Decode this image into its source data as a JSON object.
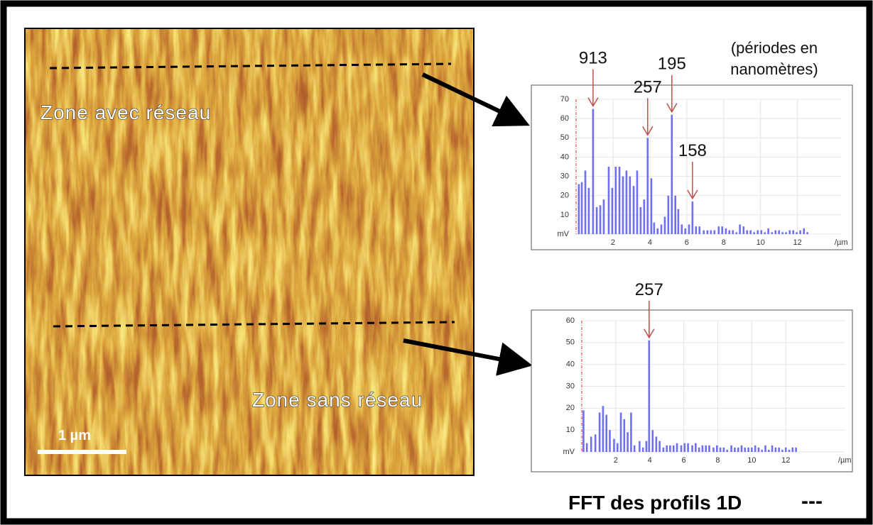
{
  "image": {
    "labels": [
      "Zone avec réseau",
      "Zone sans réseau"
    ],
    "scale_bar": "1 µm"
  },
  "caption": "FFT des profils 1D",
  "caption_marker": "---",
  "chart_data": [
    {
      "type": "bar",
      "color": "#6f6ff0",
      "grid": true,
      "xlabel": "/µm",
      "note": [
        "(périodes en",
        "nanomètres)"
      ],
      "xlim": [
        0,
        14.4
      ],
      "xticks": [
        2,
        4,
        6,
        8,
        10,
        12
      ],
      "ylim": [
        0,
        70
      ],
      "yticks": [
        {
          "value": 0,
          "label": "mV"
        },
        10,
        20,
        30,
        40,
        50,
        60,
        70
      ],
      "x": [
        0.15,
        0.31,
        0.5,
        0.69,
        0.92,
        1.12,
        1.31,
        1.5,
        1.77,
        1.96,
        2.15,
        2.35,
        2.54,
        2.73,
        2.92,
        3.12,
        3.31,
        3.5,
        3.69,
        3.88,
        4.08,
        4.23,
        4.42,
        4.62,
        4.81,
        5.0,
        5.19,
        5.38,
        5.54,
        5.73,
        5.92,
        6.12,
        6.31,
        6.5,
        6.69,
        6.92,
        7.12,
        7.31,
        7.5,
        7.73,
        7.92,
        8.12,
        8.31,
        8.5,
        8.69,
        8.88,
        9.08,
        9.27,
        9.46,
        9.65,
        9.85,
        10.04,
        10.23,
        10.42,
        10.62,
        10.81,
        11.0,
        11.19,
        11.38,
        11.58,
        11.77,
        11.96,
        12.15,
        12.35,
        12.54
      ],
      "values": [
        26,
        27,
        33,
        24,
        65,
        14,
        15,
        18,
        35,
        24,
        35,
        35,
        30,
        33,
        30,
        25,
        33,
        14,
        18,
        50,
        29,
        6,
        3,
        5,
        9,
        20,
        62,
        20,
        13,
        5,
        3,
        5,
        17,
        4,
        4,
        2,
        2,
        2,
        2,
        4,
        4,
        3,
        2,
        2,
        1,
        5,
        4,
        2,
        2,
        1,
        2,
        2,
        1,
        3,
        1,
        2,
        2,
        1,
        1,
        2,
        2,
        1,
        2,
        3,
        1
      ],
      "annotations": [
        {
          "text": "913",
          "x": 0.92,
          "y": 65
        },
        {
          "text": "257",
          "x": 3.88,
          "y": 50
        },
        {
          "text": "195",
          "x": 5.19,
          "y": 62
        },
        {
          "text": "158",
          "x": 6.31,
          "y": 17
        }
      ]
    },
    {
      "type": "bar",
      "color": "#6f6ff0",
      "grid": true,
      "xlabel": "/µm",
      "xlim": [
        0,
        15.5
      ],
      "xticks": [
        2,
        4,
        6,
        8,
        10,
        12
      ],
      "ylim": [
        0,
        60
      ],
      "yticks": [
        {
          "value": 0,
          "label": "mV"
        },
        10,
        20,
        30,
        40,
        50,
        60
      ],
      "x": [
        0.1,
        0.3,
        0.55,
        0.8,
        1.05,
        1.25,
        1.45,
        1.65,
        1.9,
        2.1,
        2.3,
        2.5,
        2.7,
        2.9,
        3.1,
        3.4,
        3.6,
        3.8,
        3.96,
        4.17,
        4.38,
        4.58,
        4.8,
        5.0,
        5.2,
        5.4,
        5.6,
        5.85,
        6.05,
        6.25,
        6.5,
        6.7,
        6.9,
        7.1,
        7.3,
        7.5,
        7.75,
        7.95,
        8.15,
        8.35,
        8.55,
        8.8,
        9.0,
        9.2,
        9.4,
        9.6,
        9.8,
        10.0,
        10.2,
        10.4,
        10.6,
        10.8,
        11.0,
        11.2,
        11.4,
        11.6,
        11.8,
        12.0,
        12.2,
        12.4,
        12.6
      ],
      "values": [
        19,
        4,
        7,
        8,
        18,
        21,
        17,
        10,
        6,
        4,
        18,
        15,
        9,
        18,
        3,
        5,
        2,
        5,
        51,
        10,
        7,
        5,
        2,
        3,
        3,
        3,
        4,
        3,
        4,
        4,
        3,
        4,
        2,
        3,
        3,
        3,
        2,
        3,
        2,
        2,
        1,
        3,
        2,
        2,
        3,
        2,
        2,
        2,
        3,
        2,
        1,
        3,
        1,
        3,
        2,
        2,
        1,
        2,
        1,
        2,
        2
      ],
      "annotations": [
        {
          "text": "257",
          "x": 3.96,
          "y": 51
        }
      ]
    }
  ]
}
